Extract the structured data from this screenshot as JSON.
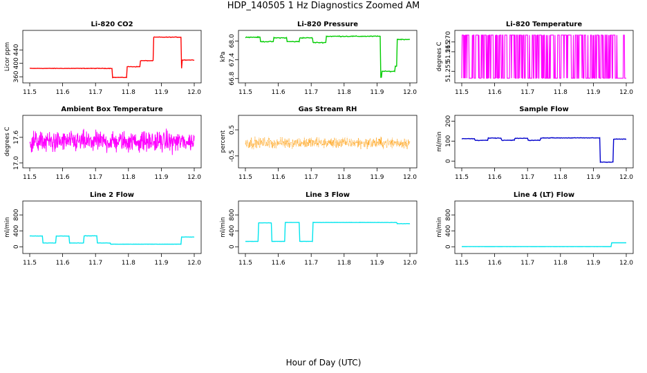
{
  "figure": {
    "title": "HDP_140505  1 Hz Diagnostics Zoomed AM",
    "xlabel": "Hour of Day (UTC)"
  },
  "chart_data": [
    {
      "type": "line",
      "title": "Li-820 CO2",
      "ylabel": "Licor ppm",
      "color": "#ff0000",
      "xlim": [
        11.5,
        12.0
      ],
      "ylim": [
        350,
        490
      ],
      "x_ticks": [
        "11.5",
        "11.6",
        "11.7",
        "11.8",
        "11.9",
        "12.0"
      ],
      "y_ticks": [
        {
          "v": 360,
          "label": "360"
        },
        {
          "v": 400,
          "label": "400"
        },
        {
          "v": 440,
          "label": "440"
        }
      ],
      "segments": [
        {
          "x0": 11.5,
          "x1": 11.75,
          "y": 385
        },
        {
          "x0": 11.75,
          "x1": 11.795,
          "y": 358
        },
        {
          "x0": 11.795,
          "x1": 11.835,
          "y": 390
        },
        {
          "x0": 11.835,
          "x1": 11.875,
          "y": 408
        },
        {
          "x0": 11.875,
          "x1": 11.96,
          "y": 478
        },
        {
          "x0": 11.96,
          "x1": 11.963,
          "y": 385
        },
        {
          "x0": 11.963,
          "x1": 12.0,
          "y": 410
        }
      ],
      "noise": 1.2
    },
    {
      "type": "line",
      "title": "Li-820 Pressure",
      "ylabel": "kPa",
      "color": "#00cc00",
      "xlim": [
        11.5,
        12.0
      ],
      "ylim": [
        66.75,
        68.25
      ],
      "x_ticks": [
        "11.5",
        "11.6",
        "11.7",
        "11.8",
        "11.9",
        "12.0"
      ],
      "y_ticks": [
        {
          "v": 66.8,
          "label": "66.8"
        },
        {
          "v": 67.4,
          "label": "67.4"
        },
        {
          "v": 68.0,
          "label": "68.0"
        }
      ],
      "segments": [
        {
          "x0": 11.5,
          "x1": 11.545,
          "y": 68.12
        },
        {
          "x0": 11.545,
          "x1": 11.585,
          "y": 67.98
        },
        {
          "x0": 11.585,
          "x1": 11.625,
          "y": 68.1
        },
        {
          "x0": 11.625,
          "x1": 11.665,
          "y": 67.98
        },
        {
          "x0": 11.665,
          "x1": 11.705,
          "y": 68.1
        },
        {
          "x0": 11.705,
          "x1": 11.745,
          "y": 67.95
        },
        {
          "x0": 11.745,
          "x1": 11.91,
          "y": 68.15
        },
        {
          "x0": 11.91,
          "x1": 11.915,
          "y": 66.85
        },
        {
          "x0": 11.915,
          "x1": 11.955,
          "y": 67.03
        },
        {
          "x0": 11.955,
          "x1": 11.96,
          "y": 67.2
        },
        {
          "x0": 11.96,
          "x1": 12.0,
          "y": 68.05
        }
      ],
      "noise": 0.02
    },
    {
      "type": "line",
      "title": "Li-820 Temperature",
      "ylabel": "degrees C",
      "color": "#ff00ff",
      "xlim": [
        11.5,
        12.0
      ],
      "ylim": [
        51.2505,
        51.2745
      ],
      "x_ticks": [
        "11.5",
        "11.6",
        "11.7",
        "11.8",
        "11.9",
        "12.0"
      ],
      "y_ticks": [
        {
          "v": 51.255,
          "label": "51.255"
        },
        {
          "v": 51.265,
          "label": "51.265"
        },
        {
          "v": 51.27,
          "label": "51.270"
        }
      ],
      "levels": [
        51.2515,
        51.2735
      ],
      "toggle_rate": 0.35
    },
    {
      "type": "line",
      "title": "Ambient Box Temperature",
      "ylabel": "degrees C",
      "color": "#ff00ff",
      "xlim": [
        11.5,
        12.0
      ],
      "ylim": [
        16.95,
        18.05
      ],
      "x_ticks": [
        "11.5",
        "11.6",
        "11.7",
        "11.8",
        "11.9",
        "12.0"
      ],
      "y_ticks": [
        {
          "v": 17.0,
          "label": "17.0"
        },
        {
          "v": 17.6,
          "label": "17.6"
        }
      ],
      "mean": 17.5,
      "noise": 0.25
    },
    {
      "type": "scatter",
      "title": "Gas Stream RH",
      "ylabel": "percent",
      "color": "#ff9900",
      "xlim": [
        11.5,
        12.0
      ],
      "ylim": [
        -0.85,
        0.95
      ],
      "x_ticks": [
        "11.5",
        "11.6",
        "11.7",
        "11.8",
        "11.9",
        "12.0"
      ],
      "y_ticks": [
        {
          "v": -0.5,
          "label": "-0.5"
        },
        {
          "v": 0.5,
          "label": "0.5"
        }
      ],
      "mean": 0.0,
      "noise": 0.22
    },
    {
      "type": "line",
      "title": "Sample Flow",
      "ylabel": "ml/min",
      "color": "#0000cc",
      "xlim": [
        11.5,
        12.0
      ],
      "ylim": [
        -20,
        215
      ],
      "x_ticks": [
        "11.5",
        "11.6",
        "11.7",
        "11.8",
        "11.9",
        "12.0"
      ],
      "y_ticks": [
        {
          "v": 0,
          "label": "0"
        },
        {
          "v": 100,
          "label": "100"
        },
        {
          "v": 200,
          "label": "200"
        }
      ],
      "segments": [
        {
          "x0": 11.5,
          "x1": 11.54,
          "y": 112
        },
        {
          "x0": 11.54,
          "x1": 11.58,
          "y": 104
        },
        {
          "x0": 11.58,
          "x1": 11.62,
          "y": 115
        },
        {
          "x0": 11.62,
          "x1": 11.66,
          "y": 104
        },
        {
          "x0": 11.66,
          "x1": 11.7,
          "y": 114
        },
        {
          "x0": 11.7,
          "x1": 11.74,
          "y": 104
        },
        {
          "x0": 11.74,
          "x1": 11.92,
          "y": 116
        },
        {
          "x0": 11.92,
          "x1": 11.96,
          "y": -5
        },
        {
          "x0": 11.96,
          "x1": 12.0,
          "y": 110
        }
      ],
      "noise": 2
    },
    {
      "type": "line",
      "title": "Line 2 Flow",
      "ylabel": "ml/min",
      "color": "#00e5ee",
      "xlim": [
        11.5,
        12.0
      ],
      "ylim": [
        -100,
        1080
      ],
      "x_ticks": [
        "11.5",
        "11.6",
        "11.7",
        "11.8",
        "11.9",
        "12.0"
      ],
      "y_ticks": [
        {
          "v": 0,
          "label": "0"
        },
        {
          "v": 400,
          "label": "400"
        },
        {
          "v": 800,
          "label": "800"
        }
      ],
      "segments": [
        {
          "x0": 11.5,
          "x1": 11.54,
          "y": 270
        },
        {
          "x0": 11.54,
          "x1": 11.58,
          "y": 95
        },
        {
          "x0": 11.58,
          "x1": 11.62,
          "y": 270
        },
        {
          "x0": 11.62,
          "x1": 11.665,
          "y": 95
        },
        {
          "x0": 11.665,
          "x1": 11.705,
          "y": 275
        },
        {
          "x0": 11.705,
          "x1": 11.745,
          "y": 95
        },
        {
          "x0": 11.745,
          "x1": 11.96,
          "y": 65
        },
        {
          "x0": 11.96,
          "x1": 12.0,
          "y": 245
        }
      ],
      "noise": 4
    },
    {
      "type": "line",
      "title": "Line 3 Flow",
      "ylabel": "ml/min",
      "color": "#00e5ee",
      "xlim": [
        11.5,
        12.0
      ],
      "ylim": [
        -100,
        1080
      ],
      "x_ticks": [
        "11.5",
        "11.6",
        "11.7",
        "11.8",
        "11.9",
        "12.0"
      ],
      "y_ticks": [
        {
          "v": 0,
          "label": "0"
        },
        {
          "v": 400,
          "label": "400"
        },
        {
          "v": 800,
          "label": "800"
        }
      ],
      "segments": [
        {
          "x0": 11.5,
          "x1": 11.54,
          "y": 135
        },
        {
          "x0": 11.54,
          "x1": 11.58,
          "y": 600
        },
        {
          "x0": 11.58,
          "x1": 11.62,
          "y": 135
        },
        {
          "x0": 11.62,
          "x1": 11.665,
          "y": 610
        },
        {
          "x0": 11.665,
          "x1": 11.705,
          "y": 135
        },
        {
          "x0": 11.705,
          "x1": 11.96,
          "y": 610
        },
        {
          "x0": 11.96,
          "x1": 12.0,
          "y": 580
        }
      ],
      "noise": 4
    },
    {
      "type": "line",
      "title": "Line 4 (LT) Flow",
      "ylabel": "ml/min",
      "color": "#00e5ee",
      "xlim": [
        11.5,
        12.0
      ],
      "ylim": [
        -100,
        1080
      ],
      "x_ticks": [
        "11.5",
        "11.6",
        "11.7",
        "11.8",
        "11.9",
        "12.0"
      ],
      "y_ticks": [
        {
          "v": 0,
          "label": "0"
        },
        {
          "v": 400,
          "label": "400"
        },
        {
          "v": 800,
          "label": "800"
        }
      ],
      "segments": [
        {
          "x0": 11.5,
          "x1": 11.955,
          "y": 5
        },
        {
          "x0": 11.955,
          "x1": 12.0,
          "y": 100
        }
      ],
      "noise": 1
    }
  ]
}
